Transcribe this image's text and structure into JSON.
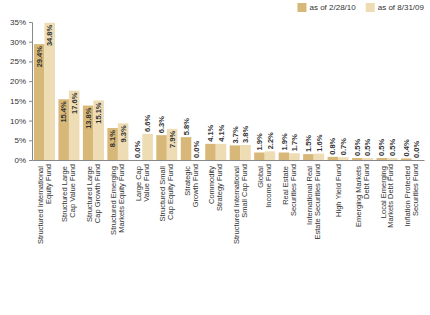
{
  "chart_data": {
    "type": "bar",
    "categories": [
      "Structured International Equity Fund",
      "Structured Large Cap Value Fund",
      "Structured Large Cap Growth Fund",
      "Structured Emerging Markets Equity Fund",
      "Large Cap Value Fund",
      "Structured Small Cap Equity Fund",
      "Strategic Growth Fund",
      "Commodity Strategy Fund",
      "Structured International Small Cap Fund",
      "Global Income Fund",
      "Real Estate Securities Fund",
      "International Real Estate Securities Fund",
      "High Yield Fund",
      "Emerging Markets Debt Fund",
      "Local Emerging Markets Debt Fund",
      "Inflation Protected Securities Fund"
    ],
    "series": [
      {
        "name": "as of 2/28/10",
        "color": "#d8b878",
        "values": [
          29.4,
          15.4,
          13.8,
          8.1,
          0.0,
          6.3,
          5.8,
          4.1,
          3.7,
          1.9,
          1.9,
          1.5,
          0.8,
          0.5,
          0.5,
          0.4
        ],
        "value_labels": [
          "29.4%",
          "15.4%",
          "13.8%",
          "8.1%",
          "0.0%",
          "6.3%",
          "5.8%",
          "4.1%",
          "3.7%",
          "1.9%",
          "1.9%",
          "1.5%",
          "0.8%",
          "0.5%",
          "0.5%",
          "0.4%"
        ]
      },
      {
        "name": "as of 8/31/09",
        "color": "#eddcb4",
        "values": [
          34.8,
          17.6,
          15.1,
          9.3,
          6.6,
          7.9,
          0.0,
          4.1,
          3.8,
          2.2,
          1.7,
          1.6,
          0.7,
          0.5,
          0.5,
          0.0
        ],
        "value_labels": [
          "34.8%",
          "17.6%",
          "15.1%",
          "9.3%",
          "6.6%",
          "7.9%",
          "0.0%",
          "4.1%",
          "3.8%",
          "2.2%",
          "1.7%",
          "1.6%",
          "0.7%",
          "0.5%",
          "0.5%",
          "0.0%"
        ]
      }
    ],
    "ylim": [
      0,
      35
    ],
    "yticks": [
      {
        "value": 0,
        "label": "0%"
      },
      {
        "value": 5,
        "label": "5%"
      },
      {
        "value": 10,
        "label": "10%"
      },
      {
        "value": 15,
        "label": "15%"
      },
      {
        "value": 20,
        "label": "20%"
      },
      {
        "value": 25,
        "label": "25%"
      },
      {
        "value": 30,
        "label": "30%"
      },
      {
        "value": 35,
        "label": "35%"
      }
    ],
    "data_labels": true,
    "legend": "top-right",
    "grid": false
  }
}
